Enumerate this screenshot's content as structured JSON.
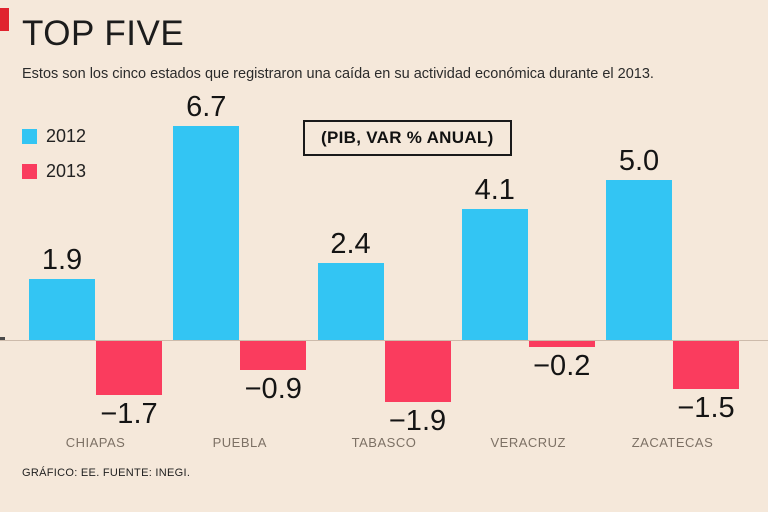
{
  "accent_color": "#e0232e",
  "title": "TOP FIVE",
  "subtitle": "Estos son los cinco estados que registraron una caída en su actividad económica durante el 2013.",
  "unit_box": "(PIB, VAR % ANUAL)",
  "footer": "GRÁFICO: EE. FUENTE: INEGI.",
  "colors": {
    "background": "#f5e8da",
    "series_2012": "#33c5f3",
    "series_2013": "#fa3c5e"
  },
  "chart_data": {
    "type": "bar",
    "categories": [
      "CHIAPAS",
      "PUEBLA",
      "TABASCO",
      "VERACRUZ",
      "ZACATECAS"
    ],
    "series": [
      {
        "name": "2012",
        "color": "#33c5f3",
        "values": [
          1.9,
          6.7,
          2.4,
          4.1,
          5.0
        ]
      },
      {
        "name": "2013",
        "color": "#fa3c5e",
        "values": [
          -1.7,
          -0.9,
          -1.9,
          -0.2,
          -1.5
        ]
      }
    ],
    "title": "TOP FIVE",
    "ylabel": "PIB, VAR % ANUAL",
    "ylim": [
      -2.5,
      7.5
    ],
    "grid": false,
    "legend_position": "top-left",
    "value_labels": true
  }
}
